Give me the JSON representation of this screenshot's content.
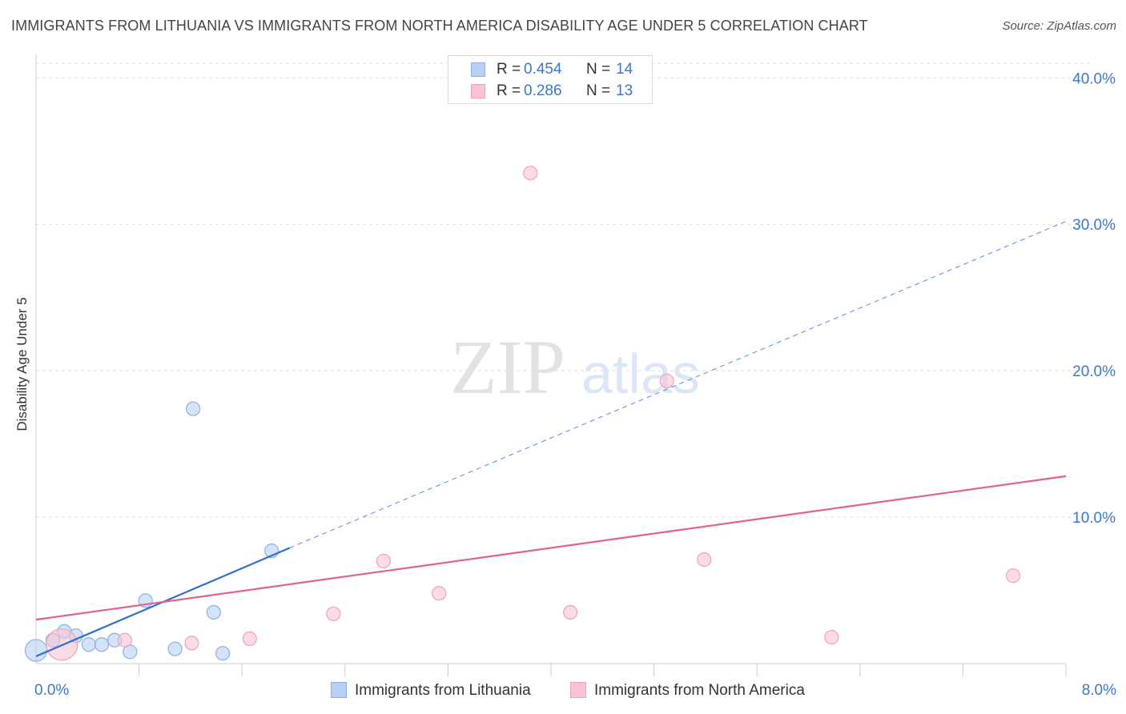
{
  "title": "IMMIGRANTS FROM LITHUANIA VS IMMIGRANTS FROM NORTH AMERICA DISABILITY AGE UNDER 5 CORRELATION CHART",
  "source": "Source: ZipAtlas.com",
  "watermark": {
    "zip": "ZIP",
    "atlas": "atlas"
  },
  "colors": {
    "blue_fill": "#b7d0f3",
    "blue_stroke": "#8ab0e4",
    "blue_line": "#2f6fcf",
    "pink_fill": "#f8c3d3",
    "pink_stroke": "#eea3ba",
    "pink_line": "#e0628d",
    "tick_text": "#3b78c9",
    "grid": "#dddddd"
  },
  "legend_top": [
    {
      "r_label": "R =",
      "r_value": "0.454",
      "n_label": "N =",
      "n_value": "14"
    },
    {
      "r_label": "R =",
      "r_value": "0.286",
      "n_label": "N =",
      "n_value": "13"
    }
  ],
  "legend_bottom": [
    "Immigrants from Lithuania",
    "Immigrants from North America"
  ],
  "x_ticks": {
    "left": "0.0%",
    "right": "8.0%"
  },
  "chart_data": {
    "type": "scatter",
    "title": "IMMIGRANTS FROM LITHUANIA VS IMMIGRANTS FROM NORTH AMERICA DISABILITY AGE UNDER 5 CORRELATION CHART",
    "xlabel": "",
    "ylabel": "Disability Age Under 5",
    "xlim": [
      0,
      8
    ],
    "ylim": [
      0,
      41
    ],
    "y_ticks": [
      {
        "value": 10,
        "label": "10.0%"
      },
      {
        "value": 20,
        "label": "20.0%"
      },
      {
        "value": 30,
        "label": "30.0%"
      },
      {
        "value": 40,
        "label": "40.0%"
      }
    ],
    "series": [
      {
        "name": "Immigrants from Lithuania",
        "color": "blue",
        "r": 0.454,
        "n": 14,
        "points": [
          {
            "x": 0.0,
            "y": 0.9,
            "size": 1.6
          },
          {
            "x": 0.13,
            "y": 1.6,
            "size": 1
          },
          {
            "x": 0.22,
            "y": 2.2,
            "size": 1
          },
          {
            "x": 0.31,
            "y": 1.9,
            "size": 1
          },
          {
            "x": 0.41,
            "y": 1.3,
            "size": 1
          },
          {
            "x": 0.51,
            "y": 1.3,
            "size": 1
          },
          {
            "x": 0.61,
            "y": 1.6,
            "size": 1
          },
          {
            "x": 0.73,
            "y": 0.8,
            "size": 1
          },
          {
            "x": 0.85,
            "y": 4.3,
            "size": 1
          },
          {
            "x": 1.08,
            "y": 1.0,
            "size": 1
          },
          {
            "x": 1.22,
            "y": 17.4,
            "size": 1
          },
          {
            "x": 1.38,
            "y": 3.5,
            "size": 1
          },
          {
            "x": 1.45,
            "y": 0.7,
            "size": 1
          },
          {
            "x": 1.83,
            "y": 7.7,
            "size": 1
          }
        ],
        "trend": {
          "x0": 0.0,
          "y0": 0.5,
          "x1": 1.97,
          "y1": 7.9,
          "dashed_x1": 8.0,
          "dashed_y1": 30.2
        }
      },
      {
        "name": "Immigrants from North America",
        "color": "pink",
        "r": 0.286,
        "n": 13,
        "points": [
          {
            "x": 0.2,
            "y": 1.3,
            "size": 2.3
          },
          {
            "x": 0.69,
            "y": 1.6,
            "size": 1
          },
          {
            "x": 1.21,
            "y": 1.4,
            "size": 1
          },
          {
            "x": 1.66,
            "y": 1.7,
            "size": 1
          },
          {
            "x": 2.31,
            "y": 3.4,
            "size": 1
          },
          {
            "x": 2.7,
            "y": 7.0,
            "size": 1
          },
          {
            "x": 3.13,
            "y": 4.8,
            "size": 1
          },
          {
            "x": 3.84,
            "y": 33.5,
            "size": 1
          },
          {
            "x": 4.15,
            "y": 3.5,
            "size": 1
          },
          {
            "x": 4.9,
            "y": 19.3,
            "size": 1
          },
          {
            "x": 5.19,
            "y": 7.1,
            "size": 1
          },
          {
            "x": 6.18,
            "y": 1.8,
            "size": 1
          },
          {
            "x": 7.59,
            "y": 6.0,
            "size": 1
          }
        ],
        "trend": {
          "x0": 0.0,
          "y0": 3.0,
          "x1": 8.0,
          "y1": 12.8
        }
      }
    ]
  }
}
